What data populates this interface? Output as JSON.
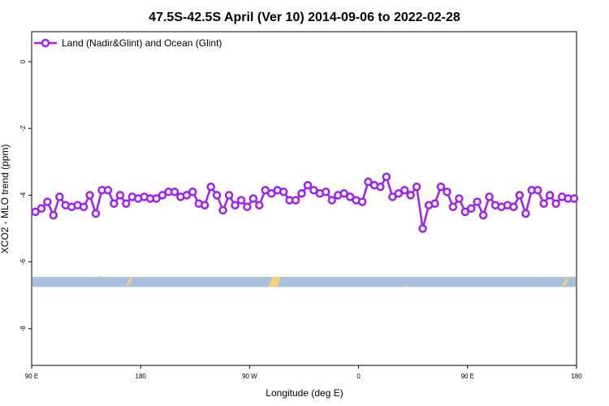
{
  "chart_data": {
    "type": "line",
    "title": "47.5S-42.5S April (Ver 10)   2014-09-06 to 2022-02-28",
    "xlabel": "Longitude (deg E)",
    "ylabel": "XCO2 - MLO trend (ppm)",
    "x_ticks": [
      {
        "value": 90,
        "label": "90 E"
      },
      {
        "value": 180,
        "label": "180"
      },
      {
        "value": 270,
        "label": "90 W"
      },
      {
        "value": 360,
        "label": "0"
      },
      {
        "value": 450,
        "label": "90 E"
      },
      {
        "value": 540,
        "label": "180"
      }
    ],
    "y_ticks": [
      {
        "value": 0,
        "label": "0"
      },
      {
        "value": -2,
        "label": "-2"
      },
      {
        "value": -4,
        "label": "-4"
      },
      {
        "value": -6,
        "label": "-6"
      },
      {
        "value": -8,
        "label": "-8"
      }
    ],
    "xlim": [
      90,
      540
    ],
    "ylim": [
      -9.1,
      0.9
    ],
    "grid": false,
    "legend_position": "top-left",
    "series": [
      {
        "name": "Land (Nadir&Glint) and Ocean (Glint)",
        "color": "#a020f0",
        "x": [
          93,
          98,
          103,
          108,
          113,
          118,
          123,
          128,
          133,
          138,
          143,
          148,
          153,
          158,
          163,
          168,
          173,
          178,
          183,
          188,
          193,
          198,
          203,
          208,
          213,
          218,
          223,
          228,
          233,
          238,
          243,
          248,
          253,
          258,
          263,
          268,
          273,
          278,
          283,
          288,
          293,
          298,
          303,
          308,
          313,
          318,
          323,
          328,
          333,
          338,
          343,
          348,
          353,
          358,
          363,
          368,
          373,
          378,
          383,
          388,
          393,
          398,
          403,
          408,
          413,
          418,
          423,
          428,
          433,
          438,
          443,
          448,
          453,
          458,
          463,
          468,
          473,
          478,
          483,
          488,
          493,
          498,
          503,
          508,
          513,
          518,
          523,
          528,
          533,
          538
        ],
        "values": [
          -4.5,
          -4.4,
          -4.2,
          -4.6,
          -4.05,
          -4.3,
          -4.35,
          -4.3,
          -4.35,
          -4.0,
          -4.55,
          -3.85,
          -3.85,
          -4.25,
          -4.0,
          -4.25,
          -4.05,
          -4.1,
          -4.05,
          -4.1,
          -4.1,
          -4.0,
          -3.9,
          -3.9,
          -4.05,
          -4.0,
          -3.9,
          -4.25,
          -4.3,
          -3.75,
          -4.0,
          -4.45,
          -4.0,
          -4.3,
          -4.15,
          -4.35,
          -4.1,
          -4.3,
          -3.85,
          -3.95,
          -3.85,
          -3.9,
          -4.15,
          -4.15,
          -3.95,
          -3.7,
          -3.85,
          -3.95,
          -3.9,
          -4.15,
          -4.0,
          -3.95,
          -4.05,
          -4.15,
          -4.2,
          -3.6,
          -3.7,
          -3.75,
          -3.45,
          -4.05,
          -3.95,
          -3.85,
          -4.0,
          -3.75,
          -5.0,
          -4.3,
          -4.25,
          -3.75,
          -3.9,
          -4.35,
          -4.1,
          -4.5,
          -4.4,
          -4.2,
          -4.6,
          -4.05,
          -4.3,
          -4.35,
          -4.3,
          -4.35,
          -4.0,
          -4.55,
          -3.85,
          -3.85,
          -4.25,
          -4.0,
          -4.25,
          -4.05,
          -4.1,
          -4.1
        ]
      }
    ],
    "map_strip": {
      "band_color": "#a8bfde",
      "land_color": "#f5d27a",
      "y_range": [
        -6.75,
        -6.45
      ]
    }
  }
}
